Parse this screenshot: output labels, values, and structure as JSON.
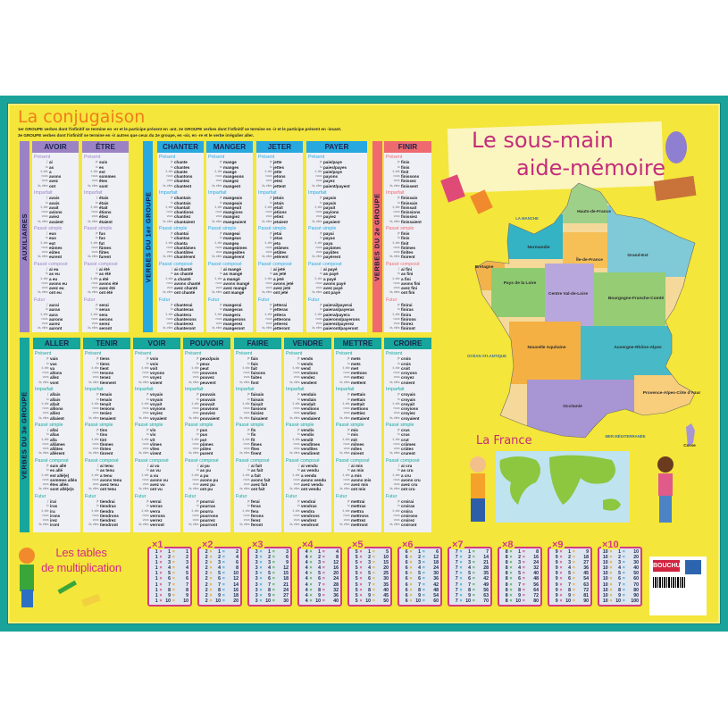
{
  "conjugation": {
    "title": "La conjugaison",
    "groups_line1": "1er GROUPE verbes dont l'infinitif se termine en -er et le participe présent en -ant.        2e GROUPE verbes dont l'infinitif se termine en -ir et le participe présent en -issant.",
    "groups_line2": "3e GROUPE verbes dont l'infinitif se termine en -ir autres que ceux du 2e groupe, en -oir, en -re et le verbe irrégulier aller.",
    "pronouns": [
      "je",
      "tu",
      "il, elle",
      "nous",
      "vous",
      "ils, elles"
    ],
    "pronoun_elided": "j'",
    "tenses": [
      "Présent",
      "Imparfait",
      "Passé simple",
      "Passé composé",
      "Futur"
    ],
    "sections": [
      {
        "label": "AUXILIAIRES",
        "color": "#9b82c4",
        "verbs": [
          "AVOIR",
          "ÊTRE"
        ]
      },
      {
        "label": "VERBES DU 1er GROUPE",
        "color": "#27a8de",
        "verbs": [
          "CHANTER",
          "MANGER",
          "JETER",
          "PAYER"
        ]
      },
      {
        "label": "VERBES DU 2e GROUPE",
        "color": "#ee6a6e",
        "verbs": [
          "FINIR"
        ]
      },
      {
        "label": "VERBES DU 3e GROUPE",
        "color": "#17a69b",
        "verbs": [
          "ALLER",
          "TENIR",
          "VOIR",
          "POUVOIR",
          "FAIRE",
          "VENDRE",
          "METTRE",
          "CROIRE"
        ]
      }
    ],
    "verbs": {
      "AVOIR": [
        [
          "ai",
          "as",
          "a",
          "avons",
          "avez",
          "ont"
        ],
        [
          "avais",
          "avais",
          "avait",
          "avions",
          "aviez",
          "avaient"
        ],
        [
          "eus",
          "eus",
          "eut",
          "eûmes",
          "eûtes",
          "eurent"
        ],
        [
          "ai eu",
          "as eu",
          "a eu",
          "avons eu",
          "avez eu",
          "ont eu"
        ],
        [
          "aurai",
          "auras",
          "aura",
          "aurons",
          "aurez",
          "auront"
        ]
      ],
      "ÊTRE": [
        [
          "suis",
          "es",
          "est",
          "sommes",
          "êtes",
          "sont"
        ],
        [
          "étais",
          "étais",
          "était",
          "étions",
          "étiez",
          "étaient"
        ],
        [
          "fus",
          "fus",
          "fut",
          "fûmes",
          "fûtes",
          "furent"
        ],
        [
          "ai été",
          "as été",
          "a été",
          "avons été",
          "avez été",
          "ont été"
        ],
        [
          "serai",
          "seras",
          "sera",
          "serons",
          "serez",
          "seront"
        ]
      ],
      "CHANTER": [
        [
          "chante",
          "chantes",
          "chante",
          "chantons",
          "chantez",
          "chantent"
        ],
        [
          "chantais",
          "chantais",
          "chantait",
          "chantions",
          "chantiez",
          "chantaient"
        ],
        [
          "chantai",
          "chantas",
          "chanta",
          "chantâmes",
          "chantâtes",
          "chantèrent"
        ],
        [
          "ai chanté",
          "as chanté",
          "a chanté",
          "avons chanté",
          "avez chanté",
          "ont chanté"
        ],
        [
          "chanterai",
          "chanteras",
          "chantera",
          "chanterons",
          "chanterez",
          "chanteront"
        ]
      ],
      "MANGER": [
        [
          "mange",
          "manges",
          "mange",
          "mangeons",
          "mangez",
          "mangent"
        ],
        [
          "mangeais",
          "mangeais",
          "mangeait",
          "mangions",
          "mangiez",
          "mangeaient"
        ],
        [
          "mangeai",
          "mangeas",
          "mangea",
          "mangeâmes",
          "mangeâtes",
          "mangèrent"
        ],
        [
          "ai mangé",
          "as mangé",
          "a mangé",
          "avons mangé",
          "avez mangé",
          "ont mangé"
        ],
        [
          "mangerai",
          "mangeras",
          "mangera",
          "mangerons",
          "mangerez",
          "mangeront"
        ]
      ],
      "JETER": [
        [
          "jette",
          "jettes",
          "jette",
          "jetons",
          "jetez",
          "jettent"
        ],
        [
          "jetais",
          "jetais",
          "jetait",
          "jetions",
          "jetiez",
          "jetaient"
        ],
        [
          "jetai",
          "jetas",
          "jeta",
          "jetâmes",
          "jetâtes",
          "jetèrent"
        ],
        [
          "ai jeté",
          "as jeté",
          "a jeté",
          "avons jeté",
          "avez jeté",
          "ont jeté"
        ],
        [
          "jetterai",
          "jetteras",
          "jettera",
          "jetterons",
          "jetterez",
          "jetteront"
        ]
      ],
      "PAYER": [
        [
          "paie/paye",
          "paies/payes",
          "paie/paye",
          "payons",
          "payez",
          "paient/payent"
        ],
        [
          "payais",
          "payais",
          "payait",
          "payions",
          "payiez",
          "payaient"
        ],
        [
          "payai",
          "payas",
          "paya",
          "payâmes",
          "payâtes",
          "payèrent"
        ],
        [
          "ai payé",
          "as payé",
          "a payé",
          "avons payé",
          "avez payé",
          "ont payé"
        ],
        [
          "paierai/payerai",
          "paieras/payeras",
          "paiera/payera",
          "paierons/payerons",
          "paierez/payerez",
          "paieront/payeront"
        ]
      ],
      "FINIR": [
        [
          "finis",
          "finis",
          "finit",
          "finissons",
          "finissez",
          "finissent"
        ],
        [
          "finissais",
          "finissais",
          "finissait",
          "finissions",
          "finissiez",
          "finissaient"
        ],
        [
          "finis",
          "finis",
          "finit",
          "finîmes",
          "finîtes",
          "finirent"
        ],
        [
          "ai fini",
          "as fini",
          "a fini",
          "avons fini",
          "avez fini",
          "ont fini"
        ],
        [
          "finirai",
          "finiras",
          "finira",
          "finirons",
          "finirez",
          "finiront"
        ]
      ],
      "ALLER": [
        [
          "vais",
          "vas",
          "va",
          "allons",
          "allez",
          "vont"
        ],
        [
          "allais",
          "allais",
          "allait",
          "allions",
          "alliez",
          "allaient"
        ],
        [
          "allai",
          "allas",
          "alla",
          "allâmes",
          "allâtes",
          "allèrent"
        ],
        [
          "suis allé",
          "es allé",
          "est allé(e)",
          "sommes allés",
          "êtes allés",
          "sont allé(e)s"
        ],
        [
          "irai",
          "iras",
          "ira",
          "irons",
          "irez",
          "iront"
        ]
      ],
      "TENIR": [
        [
          "tiens",
          "tiens",
          "tient",
          "tenons",
          "tenez",
          "tiennent"
        ],
        [
          "tenais",
          "tenais",
          "tenait",
          "tenions",
          "teniez",
          "tenaient"
        ],
        [
          "tins",
          "tins",
          "tint",
          "tînmes",
          "tîntes",
          "tinrent"
        ],
        [
          "ai tenu",
          "as tenu",
          "a tenu",
          "avons tenu",
          "avez tenu",
          "ont tenu"
        ],
        [
          "tiendrai",
          "tiendras",
          "tiendra",
          "tiendrons",
          "tiendrez",
          "tiendront"
        ]
      ],
      "VOIR": [
        [
          "vois",
          "vois",
          "voit",
          "voyons",
          "voyez",
          "voient"
        ],
        [
          "voyais",
          "voyais",
          "voyait",
          "voyions",
          "voyiez",
          "voyaient"
        ],
        [
          "vis",
          "vis",
          "vit",
          "vîmes",
          "vîtes",
          "virent"
        ],
        [
          "ai vu",
          "as vu",
          "a vu",
          "avons vu",
          "avez vu",
          "ont vu"
        ],
        [
          "verrai",
          "verras",
          "verra",
          "verrons",
          "verrez",
          "verront"
        ]
      ],
      "POUVOIR": [
        [
          "peux/puis",
          "peux",
          "peut",
          "pouvons",
          "pouvez",
          "peuvent"
        ],
        [
          "pouvais",
          "pouvais",
          "pouvait",
          "pouvions",
          "pouviez",
          "pouvaient"
        ],
        [
          "pus",
          "pus",
          "put",
          "pûmes",
          "pûtes",
          "purent"
        ],
        [
          "ai pu",
          "as pu",
          "a pu",
          "avons pu",
          "avez pu",
          "ont pu"
        ],
        [
          "pourrai",
          "pourras",
          "pourra",
          "pourrons",
          "pourrez",
          "pourront"
        ]
      ],
      "FAIRE": [
        [
          "fais",
          "fais",
          "fait",
          "faisons",
          "faites",
          "font"
        ],
        [
          "faisais",
          "faisais",
          "faisait",
          "faisions",
          "faisiez",
          "faisaient"
        ],
        [
          "fis",
          "fis",
          "fit",
          "fîmes",
          "fîtes",
          "firent"
        ],
        [
          "ai fait",
          "as fait",
          "a fait",
          "avons fait",
          "avez fait",
          "ont fait"
        ],
        [
          "ferai",
          "feras",
          "fera",
          "ferons",
          "ferez",
          "feront"
        ]
      ],
      "VENDRE": [
        [
          "vends",
          "vends",
          "vend",
          "vendons",
          "vendez",
          "vendent"
        ],
        [
          "vendais",
          "vendais",
          "vendait",
          "vendions",
          "vendiez",
          "vendaient"
        ],
        [
          "vendis",
          "vendis",
          "vendit",
          "vendîmes",
          "vendîtes",
          "vendirent"
        ],
        [
          "ai vendu",
          "as vendu",
          "a vendu",
          "avons vendu",
          "avez vendu",
          "ont vendu"
        ],
        [
          "vendrai",
          "vendras",
          "vendra",
          "vendrons",
          "vendrez",
          "vendront"
        ]
      ],
      "METTRE": [
        [
          "mets",
          "mets",
          "met",
          "mettons",
          "mettez",
          "mettent"
        ],
        [
          "mettais",
          "mettais",
          "mettait",
          "mettions",
          "mettiez",
          "mettaient"
        ],
        [
          "mis",
          "mis",
          "mit",
          "mîmes",
          "mîtes",
          "mirent"
        ],
        [
          "ai mis",
          "as mis",
          "a mis",
          "avons mis",
          "avez mis",
          "ont mis"
        ],
        [
          "mettrai",
          "mettras",
          "mettra",
          "mettrons",
          "mettrez",
          "mettront"
        ]
      ],
      "CROIRE": [
        [
          "crois",
          "crois",
          "croit",
          "croyons",
          "croyez",
          "croient"
        ],
        [
          "croyais",
          "croyais",
          "croyait",
          "croyions",
          "croyiez",
          "croyaient"
        ],
        [
          "crus",
          "crus",
          "crut",
          "crûmes",
          "crûtes",
          "crurent"
        ],
        [
          "ai cru",
          "as cru",
          "a cru",
          "avons cru",
          "avez cru",
          "ont cru"
        ],
        [
          "croirai",
          "croiras",
          "croira",
          "croirons",
          "croirez",
          "croiront"
        ]
      ]
    }
  },
  "map": {
    "title_line1": "Le sous-main",
    "title_line2": "aide-mémoire",
    "france_label": "La France",
    "seas": {
      "manche": "LA MANCHE",
      "atlantique": "OCÉAN ATLANTIQUE",
      "mediterranee": "MER MÉDITERRANÉE"
    },
    "regions": [
      "Hauts-de-France",
      "Normandie",
      "Île-de-France",
      "Grand-Est",
      "Bretagne",
      "Pays de la Loire",
      "Centre Val-de-Loire",
      "Bourgogne-Franche-Comté",
      "Nouvelle Aquitaine",
      "Auvergne-Rhône-Alpes",
      "Occitanie",
      "Provence-Alpes-Côte d'Azur",
      "Corse"
    ]
  },
  "multiplication": {
    "title_line1": "Les tables",
    "title_line2": "de multiplication",
    "tables": [
      1,
      2,
      3,
      4,
      5,
      6,
      7,
      8,
      9,
      10
    ],
    "factors": [
      1,
      2,
      3,
      4,
      5,
      6,
      7,
      8,
      9,
      10
    ],
    "color": "#d43b82"
  },
  "publisher": {
    "logo": "BOUCHUT",
    "logo_color": "#d2233f"
  }
}
